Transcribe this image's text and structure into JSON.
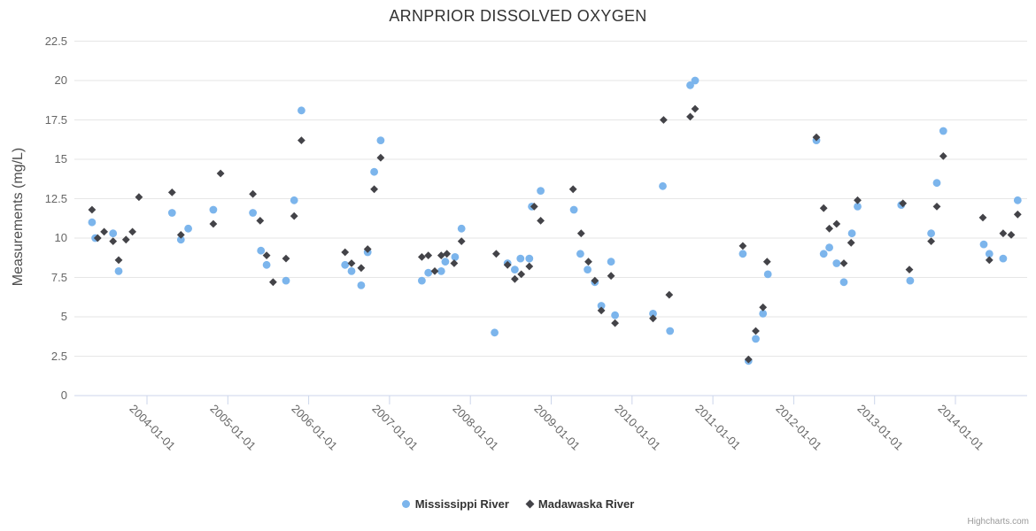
{
  "title": "ARNPRIOR DISSOLVED OXYGEN",
  "credits": "Highcharts.com",
  "colors": {
    "mississippi": "#7cb5ec",
    "madawaska": "#434348",
    "gridline": "#e6e6e6",
    "axis_line": "#ccd6eb",
    "tick_text": "#666666",
    "title_text": "#333333"
  },
  "legend": {
    "items": [
      {
        "label": "Mississippi River",
        "marker": "circle",
        "color": "#7cb5ec"
      },
      {
        "label": "Madawaska River",
        "marker": "diamond",
        "color": "#434348"
      }
    ]
  },
  "chart_data": {
    "type": "scatter",
    "title": "ARNPRIOR DISSOLVED OXYGEN",
    "xlabel": "",
    "ylabel": "Measurements (mg/L)",
    "ylim": [
      0,
      22.5
    ],
    "y_ticks": [
      0,
      2.5,
      5,
      7.5,
      10,
      12.5,
      15,
      17.5,
      20,
      22.5
    ],
    "y_tick_labels": [
      "0",
      "2.5",
      "5",
      "7.5",
      "10",
      "12.5",
      "15",
      "17.5",
      "20",
      "22.5"
    ],
    "x_tick_years": [
      2004,
      2005,
      2006,
      2007,
      2008,
      2009,
      2010,
      2011,
      2012,
      2013,
      2014
    ],
    "x_tick_labels": [
      "2004-01-01",
      "2005-01-01",
      "2006-01-01",
      "2007-01-01",
      "2008-01-01",
      "2009-01-01",
      "2010-01-01",
      "2011-01-01",
      "2012-01-01",
      "2013-01-01",
      "2014-01-01"
    ],
    "grid": true,
    "legend_position": "bottom",
    "series": [
      {
        "name": "Mississippi River",
        "marker": "circle",
        "color": "#7cb5ec",
        "points": [
          [
            2003.32,
            11.0
          ],
          [
            2003.36,
            10.0
          ],
          [
            2003.58,
            10.3
          ],
          [
            2003.65,
            7.9
          ],
          [
            2004.31,
            11.6
          ],
          [
            2004.42,
            9.9
          ],
          [
            2004.51,
            10.6
          ],
          [
            2004.82,
            11.8
          ],
          [
            2005.31,
            11.6
          ],
          [
            2005.41,
            9.2
          ],
          [
            2005.48,
            8.3
          ],
          [
            2005.72,
            7.3
          ],
          [
            2005.82,
            12.4
          ],
          [
            2005.91,
            18.1
          ],
          [
            2006.45,
            8.3
          ],
          [
            2006.53,
            7.9
          ],
          [
            2006.65,
            7.0
          ],
          [
            2006.73,
            9.1
          ],
          [
            2006.81,
            14.2
          ],
          [
            2006.89,
            16.2
          ],
          [
            2007.4,
            7.3
          ],
          [
            2007.48,
            7.8
          ],
          [
            2007.64,
            7.9
          ],
          [
            2007.69,
            8.5
          ],
          [
            2007.81,
            8.8
          ],
          [
            2007.89,
            10.6
          ],
          [
            2008.3,
            4.0
          ],
          [
            2008.46,
            8.4
          ],
          [
            2008.55,
            8.0
          ],
          [
            2008.62,
            8.7
          ],
          [
            2008.73,
            8.7
          ],
          [
            2008.76,
            12.0
          ],
          [
            2008.87,
            13.0
          ],
          [
            2009.28,
            11.8
          ],
          [
            2009.36,
            9.0
          ],
          [
            2009.45,
            8.0
          ],
          [
            2009.54,
            7.2
          ],
          [
            2009.62,
            5.7
          ],
          [
            2009.74,
            8.5
          ],
          [
            2009.79,
            5.1
          ],
          [
            2010.26,
            5.2
          ],
          [
            2010.38,
            13.3
          ],
          [
            2010.47,
            4.1
          ],
          [
            2010.72,
            19.7
          ],
          [
            2010.78,
            20.0
          ],
          [
            2011.37,
            9.0
          ],
          [
            2011.44,
            2.2
          ],
          [
            2011.53,
            3.6
          ],
          [
            2011.62,
            5.2
          ],
          [
            2011.68,
            7.7
          ],
          [
            2012.28,
            16.2
          ],
          [
            2012.37,
            9.0
          ],
          [
            2012.44,
            9.4
          ],
          [
            2012.53,
            8.4
          ],
          [
            2012.62,
            7.2
          ],
          [
            2012.72,
            10.3
          ],
          [
            2012.79,
            12.0
          ],
          [
            2013.33,
            12.1
          ],
          [
            2013.44,
            7.3
          ],
          [
            2013.7,
            10.3
          ],
          [
            2013.77,
            13.5
          ],
          [
            2013.85,
            16.8
          ],
          [
            2014.35,
            9.6
          ],
          [
            2014.42,
            9.0
          ],
          [
            2014.59,
            8.7
          ],
          [
            2014.77,
            12.4
          ]
        ]
      },
      {
        "name": "Madawaska River",
        "marker": "diamond",
        "color": "#434348",
        "points": [
          [
            2003.32,
            11.8
          ],
          [
            2003.39,
            10.0
          ],
          [
            2003.47,
            10.4
          ],
          [
            2003.58,
            9.8
          ],
          [
            2003.65,
            8.6
          ],
          [
            2003.74,
            9.9
          ],
          [
            2003.82,
            10.4
          ],
          [
            2003.9,
            12.6
          ],
          [
            2004.31,
            12.9
          ],
          [
            2004.42,
            10.2
          ],
          [
            2004.82,
            10.9
          ],
          [
            2004.91,
            14.1
          ],
          [
            2005.31,
            12.8
          ],
          [
            2005.4,
            11.1
          ],
          [
            2005.48,
            8.9
          ],
          [
            2005.56,
            7.2
          ],
          [
            2005.72,
            8.7
          ],
          [
            2005.82,
            11.4
          ],
          [
            2005.91,
            16.2
          ],
          [
            2006.45,
            9.1
          ],
          [
            2006.53,
            8.4
          ],
          [
            2006.65,
            8.1
          ],
          [
            2006.73,
            9.3
          ],
          [
            2006.81,
            13.1
          ],
          [
            2006.89,
            15.1
          ],
          [
            2007.4,
            8.8
          ],
          [
            2007.48,
            8.9
          ],
          [
            2007.56,
            7.9
          ],
          [
            2007.64,
            8.9
          ],
          [
            2007.71,
            9.0
          ],
          [
            2007.8,
            8.4
          ],
          [
            2007.89,
            9.8
          ],
          [
            2008.32,
            9.0
          ],
          [
            2008.46,
            8.3
          ],
          [
            2008.55,
            7.4
          ],
          [
            2008.63,
            7.7
          ],
          [
            2008.73,
            8.2
          ],
          [
            2008.79,
            12.0
          ],
          [
            2008.87,
            11.1
          ],
          [
            2009.27,
            13.1
          ],
          [
            2009.37,
            10.3
          ],
          [
            2009.46,
            8.5
          ],
          [
            2009.54,
            7.3
          ],
          [
            2009.62,
            5.4
          ],
          [
            2009.74,
            7.6
          ],
          [
            2009.79,
            4.6
          ],
          [
            2010.26,
            4.9
          ],
          [
            2010.39,
            17.5
          ],
          [
            2010.46,
            6.4
          ],
          [
            2010.72,
            17.7
          ],
          [
            2010.78,
            18.2
          ],
          [
            2011.37,
            9.5
          ],
          [
            2011.44,
            2.3
          ],
          [
            2011.53,
            4.1
          ],
          [
            2011.62,
            5.6
          ],
          [
            2011.67,
            8.5
          ],
          [
            2012.28,
            16.4
          ],
          [
            2012.37,
            11.9
          ],
          [
            2012.44,
            10.6
          ],
          [
            2012.53,
            10.9
          ],
          [
            2012.62,
            8.4
          ],
          [
            2012.71,
            9.7
          ],
          [
            2012.79,
            12.4
          ],
          [
            2013.35,
            12.2
          ],
          [
            2013.43,
            8.0
          ],
          [
            2013.7,
            9.8
          ],
          [
            2013.77,
            12.0
          ],
          [
            2013.85,
            15.2
          ],
          [
            2014.34,
            11.3
          ],
          [
            2014.42,
            8.6
          ],
          [
            2014.59,
            10.3
          ],
          [
            2014.69,
            10.2
          ],
          [
            2014.77,
            11.5
          ]
        ]
      }
    ]
  }
}
